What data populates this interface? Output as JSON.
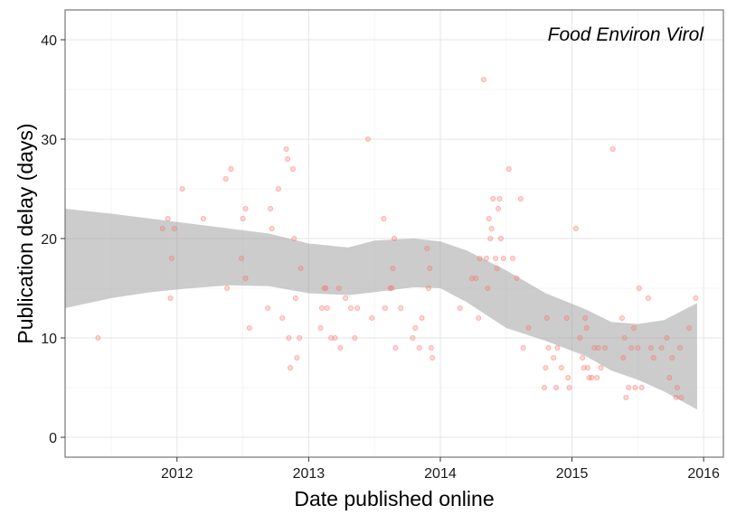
{
  "chart_data": {
    "type": "scatter",
    "title": "Food Environ Virol",
    "xlabel": "Date published online",
    "ylabel": "Publication delay (days)",
    "xlim": [
      2011.15,
      2016.15
    ],
    "ylim": [
      -2,
      43
    ],
    "xticks": [
      2012,
      2013,
      2014,
      2015,
      2016
    ],
    "xtick_labels": [
      "2012",
      "2013",
      "2014",
      "2015",
      "2016"
    ],
    "yticks": [
      0,
      10,
      20,
      30,
      40
    ],
    "ytick_labels": [
      "0",
      "10",
      "20",
      "30",
      "40"
    ],
    "grid": true,
    "legend": "none",
    "point_color": "#f8766d",
    "band_color": "#999999",
    "points": [
      {
        "x": 2011.4,
        "y": 10
      },
      {
        "x": 2011.89,
        "y": 21
      },
      {
        "x": 2011.93,
        "y": 22
      },
      {
        "x": 2011.95,
        "y": 14
      },
      {
        "x": 2011.96,
        "y": 18
      },
      {
        "x": 2011.98,
        "y": 21
      },
      {
        "x": 2012.04,
        "y": 25
      },
      {
        "x": 2012.2,
        "y": 22
      },
      {
        "x": 2012.37,
        "y": 26
      },
      {
        "x": 2012.38,
        "y": 15
      },
      {
        "x": 2012.41,
        "y": 27
      },
      {
        "x": 2012.49,
        "y": 18
      },
      {
        "x": 2012.5,
        "y": 22
      },
      {
        "x": 2012.52,
        "y": 23
      },
      {
        "x": 2012.52,
        "y": 16
      },
      {
        "x": 2012.55,
        "y": 11
      },
      {
        "x": 2012.69,
        "y": 13
      },
      {
        "x": 2012.71,
        "y": 23
      },
      {
        "x": 2012.72,
        "y": 21
      },
      {
        "x": 2012.77,
        "y": 25
      },
      {
        "x": 2012.8,
        "y": 12
      },
      {
        "x": 2012.83,
        "y": 29
      },
      {
        "x": 2012.84,
        "y": 28
      },
      {
        "x": 2012.85,
        "y": 10
      },
      {
        "x": 2012.86,
        "y": 7
      },
      {
        "x": 2012.88,
        "y": 27
      },
      {
        "x": 2012.89,
        "y": 20
      },
      {
        "x": 2012.9,
        "y": 14
      },
      {
        "x": 2012.91,
        "y": 8
      },
      {
        "x": 2012.93,
        "y": 10
      },
      {
        "x": 2012.94,
        "y": 17
      },
      {
        "x": 2013.09,
        "y": 11
      },
      {
        "x": 2013.1,
        "y": 13
      },
      {
        "x": 2013.12,
        "y": 15
      },
      {
        "x": 2013.13,
        "y": 15
      },
      {
        "x": 2013.14,
        "y": 13
      },
      {
        "x": 2013.17,
        "y": 10
      },
      {
        "x": 2013.2,
        "y": 10
      },
      {
        "x": 2013.23,
        "y": 15
      },
      {
        "x": 2013.24,
        "y": 9
      },
      {
        "x": 2013.28,
        "y": 14
      },
      {
        "x": 2013.32,
        "y": 13
      },
      {
        "x": 2013.35,
        "y": 10
      },
      {
        "x": 2013.37,
        "y": 13
      },
      {
        "x": 2013.45,
        "y": 30
      },
      {
        "x": 2013.48,
        "y": 12
      },
      {
        "x": 2013.57,
        "y": 22
      },
      {
        "x": 2013.58,
        "y": 13
      },
      {
        "x": 2013.62,
        "y": 15
      },
      {
        "x": 2013.63,
        "y": 15
      },
      {
        "x": 2013.64,
        "y": 17
      },
      {
        "x": 2013.66,
        "y": 9
      },
      {
        "x": 2013.65,
        "y": 20
      },
      {
        "x": 2013.7,
        "y": 13
      },
      {
        "x": 2013.79,
        "y": 10
      },
      {
        "x": 2013.81,
        "y": 11
      },
      {
        "x": 2013.84,
        "y": 9
      },
      {
        "x": 2013.86,
        "y": 12
      },
      {
        "x": 2013.9,
        "y": 19
      },
      {
        "x": 2013.91,
        "y": 15
      },
      {
        "x": 2013.92,
        "y": 17
      },
      {
        "x": 2013.93,
        "y": 9
      },
      {
        "x": 2013.94,
        "y": 8
      },
      {
        "x": 2014.15,
        "y": 13
      },
      {
        "x": 2014.24,
        "y": 16
      },
      {
        "x": 2014.27,
        "y": 16
      },
      {
        "x": 2014.29,
        "y": 12
      },
      {
        "x": 2014.3,
        "y": 18
      },
      {
        "x": 2014.33,
        "y": 36
      },
      {
        "x": 2014.35,
        "y": 18
      },
      {
        "x": 2014.36,
        "y": 15
      },
      {
        "x": 2014.37,
        "y": 22
      },
      {
        "x": 2014.38,
        "y": 20
      },
      {
        "x": 2014.39,
        "y": 21
      },
      {
        "x": 2014.4,
        "y": 24
      },
      {
        "x": 2014.42,
        "y": 18
      },
      {
        "x": 2014.43,
        "y": 17
      },
      {
        "x": 2014.44,
        "y": 23
      },
      {
        "x": 2014.45,
        "y": 24
      },
      {
        "x": 2014.46,
        "y": 20
      },
      {
        "x": 2014.48,
        "y": 18
      },
      {
        "x": 2014.52,
        "y": 27
      },
      {
        "x": 2014.55,
        "y": 18
      },
      {
        "x": 2014.58,
        "y": 16
      },
      {
        "x": 2014.61,
        "y": 24
      },
      {
        "x": 2014.63,
        "y": 9
      },
      {
        "x": 2014.67,
        "y": 11
      },
      {
        "x": 2014.79,
        "y": 5
      },
      {
        "x": 2014.8,
        "y": 7
      },
      {
        "x": 2014.81,
        "y": 12
      },
      {
        "x": 2014.82,
        "y": 9
      },
      {
        "x": 2014.86,
        "y": 8
      },
      {
        "x": 2014.88,
        "y": 5
      },
      {
        "x": 2014.89,
        "y": 9
      },
      {
        "x": 2014.92,
        "y": 7
      },
      {
        "x": 2014.96,
        "y": 12
      },
      {
        "x": 2014.97,
        "y": 6
      },
      {
        "x": 2014.98,
        "y": 5
      },
      {
        "x": 2015.03,
        "y": 21
      },
      {
        "x": 2015.06,
        "y": 10
      },
      {
        "x": 2015.08,
        "y": 8
      },
      {
        "x": 2015.09,
        "y": 7
      },
      {
        "x": 2015.1,
        "y": 12
      },
      {
        "x": 2015.11,
        "y": 11
      },
      {
        "x": 2015.12,
        "y": 7
      },
      {
        "x": 2015.13,
        "y": 6
      },
      {
        "x": 2015.15,
        "y": 6
      },
      {
        "x": 2015.17,
        "y": 9
      },
      {
        "x": 2015.19,
        "y": 6
      },
      {
        "x": 2015.2,
        "y": 9
      },
      {
        "x": 2015.22,
        "y": 7
      },
      {
        "x": 2015.25,
        "y": 9
      },
      {
        "x": 2015.31,
        "y": 29
      },
      {
        "x": 2015.38,
        "y": 12
      },
      {
        "x": 2015.39,
        "y": 8
      },
      {
        "x": 2015.4,
        "y": 10
      },
      {
        "x": 2015.41,
        "y": 4
      },
      {
        "x": 2015.43,
        "y": 5
      },
      {
        "x": 2015.45,
        "y": 9
      },
      {
        "x": 2015.47,
        "y": 11
      },
      {
        "x": 2015.48,
        "y": 5
      },
      {
        "x": 2015.5,
        "y": 9
      },
      {
        "x": 2015.51,
        "y": 15
      },
      {
        "x": 2015.53,
        "y": 5
      },
      {
        "x": 2015.58,
        "y": 14
      },
      {
        "x": 2015.6,
        "y": 9
      },
      {
        "x": 2015.62,
        "y": 8
      },
      {
        "x": 2015.68,
        "y": 9
      },
      {
        "x": 2015.72,
        "y": 10
      },
      {
        "x": 2015.74,
        "y": 6
      },
      {
        "x": 2015.76,
        "y": 8
      },
      {
        "x": 2015.79,
        "y": 4
      },
      {
        "x": 2015.8,
        "y": 5
      },
      {
        "x": 2015.82,
        "y": 9
      },
      {
        "x": 2015.83,
        "y": 4
      },
      {
        "x": 2015.89,
        "y": 11
      },
      {
        "x": 2015.94,
        "y": 14
      }
    ],
    "confidence_band": {
      "x": [
        2011.15,
        2011.5,
        2011.8,
        2012.1,
        2012.4,
        2012.7,
        2013.0,
        2013.3,
        2013.5,
        2013.8,
        2014.0,
        2014.2,
        2014.5,
        2014.8,
        2015.1,
        2015.3,
        2015.5,
        2015.7,
        2015.95
      ],
      "lower": [
        13,
        14,
        14.6,
        15,
        15.3,
        15.2,
        14.5,
        14.3,
        14.6,
        15.1,
        15,
        13.6,
        11,
        9.7,
        8.2,
        6.7,
        5.8,
        4.6,
        2.8
      ],
      "upper": [
        23,
        22.5,
        22,
        21.5,
        21,
        20.5,
        19.5,
        19.1,
        19.8,
        20,
        19.7,
        18.8,
        16.8,
        14.5,
        12.9,
        11.6,
        11.4,
        11.8,
        13.5
      ]
    }
  }
}
